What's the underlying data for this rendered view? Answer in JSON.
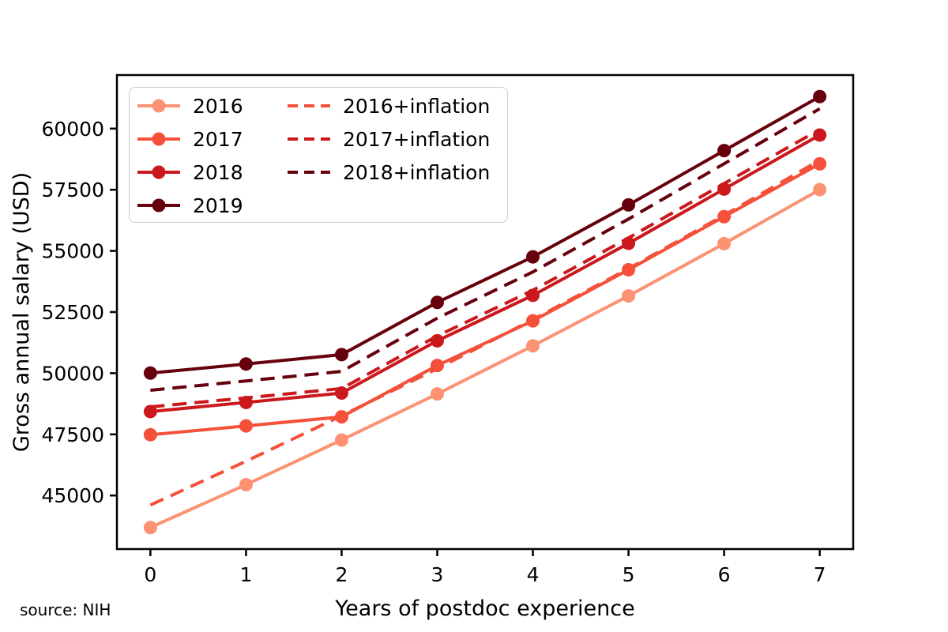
{
  "figure": {
    "background": "#ffffff",
    "text_color": "#000000",
    "legend_border_color": "#cccccc"
  },
  "chart_data": {
    "type": "line",
    "title": "",
    "xlabel": "Years of postdoc experience",
    "ylabel": "Gross annual salary (USD)",
    "source": "source: NIH",
    "x": [
      0,
      1,
      2,
      3,
      4,
      5,
      6,
      7
    ],
    "xticks": [
      0,
      1,
      2,
      3,
      4,
      5,
      6,
      7
    ],
    "yticks": [
      45000,
      47500,
      50000,
      52500,
      55000,
      57500,
      60000
    ],
    "xlim": [
      -0.35,
      7.35
    ],
    "ylim": [
      42811,
      62189
    ],
    "grid": false,
    "legend_position": "upper-left",
    "series": [
      {
        "name": "2016",
        "color": "#fc9272",
        "style": "solid",
        "markers": true,
        "values": [
          43692,
          45444,
          47268,
          49152,
          51120,
          53160,
          55296,
          57504
        ]
      },
      {
        "name": "2017",
        "color": "#f4503a",
        "style": "solid",
        "markers": true,
        "values": [
          47484,
          47844,
          48216,
          50316,
          52140,
          54228,
          56400,
          58560
        ]
      },
      {
        "name": "2018",
        "color": "#cb181d",
        "style": "solid",
        "markers": true,
        "values": [
          48432,
          48804,
          49188,
          51324,
          53184,
          55308,
          57528,
          59736
        ]
      },
      {
        "name": "2019",
        "color": "#67000d",
        "style": "solid",
        "markers": true,
        "values": [
          50004,
          50376,
          50760,
          52896,
          54756,
          56880,
          59100,
          61308
        ]
      },
      {
        "name": "2016+inflation",
        "color": "#f4503a",
        "style": "dashed",
        "markers": false,
        "values": [
          44610,
          46398,
          48261,
          50184,
          52194,
          54276,
          56457,
          58712
        ]
      },
      {
        "name": "2017+inflation",
        "color": "#cb181d",
        "style": "dashed",
        "markers": false,
        "values": [
          48624,
          48992,
          49373,
          51524,
          53391,
          55530,
          57754,
          59965
        ]
      },
      {
        "name": "2018+inflation",
        "color": "#67000d",
        "style": "dashed",
        "markers": false,
        "values": [
          49304,
          49682,
          50073,
          52248,
          54141,
          56304,
          58564,
          60811
        ]
      }
    ]
  }
}
